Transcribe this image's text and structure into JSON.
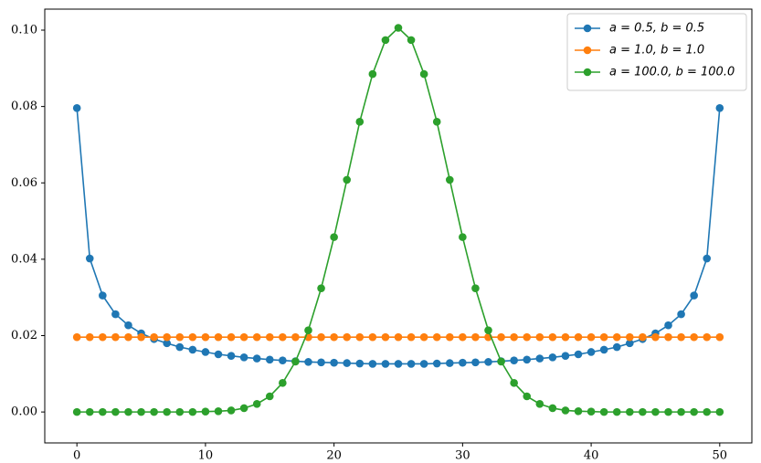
{
  "chart_data": {
    "type": "line",
    "x": [
      0,
      1,
      2,
      3,
      4,
      5,
      6,
      7,
      8,
      9,
      10,
      11,
      12,
      13,
      14,
      15,
      16,
      17,
      18,
      19,
      20,
      21,
      22,
      23,
      24,
      25,
      26,
      27,
      28,
      29,
      30,
      31,
      32,
      33,
      34,
      35,
      36,
      37,
      38,
      39,
      40,
      41,
      42,
      43,
      44,
      45,
      46,
      47,
      48,
      49,
      50
    ],
    "series": [
      {
        "name": "a = 0.5, b = 0.5",
        "color": "#1f77b4",
        "values": [
          0.0796,
          0.0402,
          0.0305,
          0.0256,
          0.0227,
          0.0206,
          0.0191,
          0.018,
          0.017,
          0.0163,
          0.0157,
          0.0151,
          0.0147,
          0.0143,
          0.014,
          0.0137,
          0.0135,
          0.0133,
          0.0131,
          0.013,
          0.0129,
          0.0128,
          0.0127,
          0.0126,
          0.0126,
          0.0126,
          0.0126,
          0.0126,
          0.0127,
          0.0128,
          0.0129,
          0.013,
          0.0131,
          0.0133,
          0.0135,
          0.0137,
          0.014,
          0.0143,
          0.0147,
          0.0151,
          0.0157,
          0.0163,
          0.017,
          0.018,
          0.0191,
          0.0206,
          0.0227,
          0.0256,
          0.0305,
          0.0402,
          0.0796
        ]
      },
      {
        "name": "a = 1.0, b = 1.0",
        "color": "#ff7f0e",
        "values": [
          0.0196,
          0.0196,
          0.0196,
          0.0196,
          0.0196,
          0.0196,
          0.0196,
          0.0196,
          0.0196,
          0.0196,
          0.0196,
          0.0196,
          0.0196,
          0.0196,
          0.0196,
          0.0196,
          0.0196,
          0.0196,
          0.0196,
          0.0196,
          0.0196,
          0.0196,
          0.0196,
          0.0196,
          0.0196,
          0.0196,
          0.0196,
          0.0196,
          0.0196,
          0.0196,
          0.0196,
          0.0196,
          0.0196,
          0.0196,
          0.0196,
          0.0196,
          0.0196,
          0.0196,
          0.0196,
          0.0196,
          0.0196,
          0.0196,
          0.0196,
          0.0196,
          0.0196,
          0.0196,
          0.0196,
          0.0196,
          0.0196,
          0.0196,
          0.0196
        ]
      },
      {
        "name": "a = 100.0, b = 100.0",
        "color": "#2ca02c",
        "values": [
          0,
          0,
          0,
          0,
          0,
          0,
          0,
          0,
          0,
          0,
          0.0001,
          0.0002,
          0.0004,
          0.001,
          0.0021,
          0.0041,
          0.0076,
          0.0132,
          0.0214,
          0.0324,
          0.0458,
          0.0608,
          0.076,
          0.0885,
          0.0974,
          0.1006,
          0.0974,
          0.0885,
          0.076,
          0.0608,
          0.0458,
          0.0324,
          0.0214,
          0.0132,
          0.0076,
          0.0041,
          0.0021,
          0.001,
          0.0004,
          0.0002,
          0.0001,
          0,
          0,
          0,
          0,
          0,
          0,
          0,
          0,
          0,
          0
        ]
      }
    ],
    "xlim": [
      -2.5,
      52.5
    ],
    "xticks": [
      0,
      10,
      20,
      30,
      40,
      50
    ],
    "ylim": [
      -0.0081,
      0.1055
    ],
    "yticks": [
      {
        "value": 0,
        "label": "0.00"
      },
      {
        "value": 0.02,
        "label": "0.02"
      },
      {
        "value": 0.04,
        "label": "0.04"
      },
      {
        "value": 0.06,
        "label": "0.06"
      },
      {
        "value": 0.08,
        "label": "0.08"
      },
      {
        "value": 0.1,
        "label": "0.10"
      }
    ],
    "legend": "upper right",
    "grid": false
  }
}
